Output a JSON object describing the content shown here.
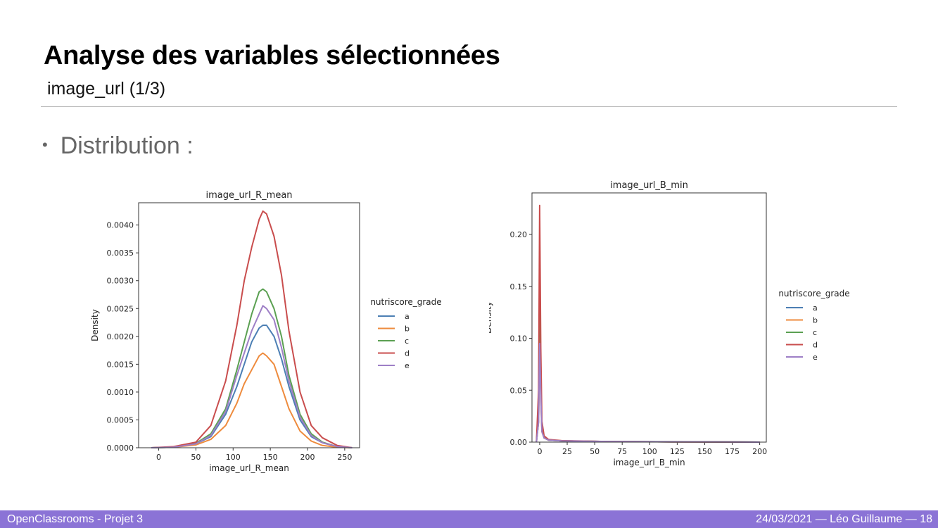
{
  "slide": {
    "title": "Analyse des variables sélectionnées",
    "subtitle": "image_url (1/3)",
    "bullet": "Distribution :"
  },
  "footer": {
    "left": "OpenClassrooms - Projet 3",
    "right": "24/03/2021 — Léo Guillaume — 18"
  },
  "chart_data": [
    {
      "type": "line",
      "title": "image_url_R_mean",
      "xlabel": "image_url_R_mean",
      "ylabel": "Density",
      "xlim": [
        -27,
        270
      ],
      "ylim": [
        0,
        0.0044
      ],
      "xticks": [
        0,
        50,
        100,
        150,
        200,
        250
      ],
      "yticks": [
        0.0,
        0.0005,
        0.001,
        0.0015,
        0.002,
        0.0025,
        0.003,
        0.0035,
        0.004
      ],
      "ytick_labels": [
        "0.0000",
        "0.0005",
        "0.0010",
        "0.0015",
        "0.0020",
        "0.0025",
        "0.0030",
        "0.0035",
        "0.0040"
      ],
      "xtick_labels": [
        "0",
        "50",
        "100",
        "150",
        "200",
        "250"
      ],
      "legend": {
        "title": "nutriscore_grade",
        "placement": "outside-right"
      },
      "series": [
        {
          "name": "a",
          "color": "#4c7fb4",
          "x": [
            -10,
            20,
            50,
            70,
            90,
            105,
            115,
            125,
            135,
            140,
            145,
            155,
            165,
            175,
            190,
            205,
            220,
            240,
            260
          ],
          "y": [
            0,
            1e-05,
            7e-05,
            0.0002,
            0.0006,
            0.0011,
            0.0015,
            0.0019,
            0.00215,
            0.0022,
            0.0022,
            0.002,
            0.0016,
            0.0011,
            0.0005,
            0.0002,
            9e-05,
            2e-05,
            0
          ]
        },
        {
          "name": "b",
          "color": "#ee8b3d",
          "x": [
            -10,
            20,
            50,
            70,
            90,
            105,
            115,
            125,
            135,
            140,
            145,
            155,
            165,
            175,
            190,
            205,
            220,
            240,
            260
          ],
          "y": [
            0,
            1e-05,
            5e-05,
            0.00015,
            0.0004,
            0.0008,
            0.00115,
            0.0014,
            0.00165,
            0.0017,
            0.00165,
            0.0015,
            0.0011,
            0.0007,
            0.0003,
            0.00012,
            4e-05,
            1e-05,
            0
          ]
        },
        {
          "name": "c",
          "color": "#5ba052",
          "x": [
            -10,
            20,
            50,
            70,
            90,
            105,
            115,
            125,
            135,
            140,
            145,
            155,
            165,
            175,
            190,
            205,
            220,
            240,
            260
          ],
          "y": [
            0,
            1e-05,
            8e-05,
            0.00025,
            0.0007,
            0.0014,
            0.0019,
            0.0024,
            0.0028,
            0.00285,
            0.0028,
            0.0025,
            0.002,
            0.0013,
            0.0006,
            0.00025,
            0.0001,
            2e-05,
            0
          ]
        },
        {
          "name": "d",
          "color": "#c94d4d",
          "x": [
            -10,
            20,
            50,
            70,
            90,
            105,
            115,
            125,
            135,
            140,
            145,
            155,
            165,
            175,
            190,
            205,
            220,
            240,
            260
          ],
          "y": [
            0,
            2e-05,
            0.0001,
            0.0004,
            0.0012,
            0.0022,
            0.003,
            0.0036,
            0.0041,
            0.00425,
            0.0042,
            0.0038,
            0.0031,
            0.0021,
            0.001,
            0.0004,
            0.00018,
            4e-05,
            0
          ]
        },
        {
          "name": "e",
          "color": "#9e7fc6",
          "x": [
            -10,
            20,
            50,
            70,
            90,
            105,
            115,
            125,
            135,
            140,
            145,
            155,
            165,
            175,
            190,
            205,
            220,
            240,
            260
          ],
          "y": [
            0,
            1e-05,
            7e-05,
            0.00022,
            0.00065,
            0.0013,
            0.0017,
            0.0021,
            0.0024,
            0.00255,
            0.0025,
            0.0023,
            0.0018,
            0.0012,
            0.00055,
            0.00022,
            9e-05,
            2e-05,
            0
          ]
        }
      ]
    },
    {
      "type": "line",
      "title": "image_url_B_min",
      "xlabel": "image_url_B_min",
      "ylabel": "Density",
      "xlim": [
        -7,
        206
      ],
      "ylim": [
        0,
        0.24
      ],
      "xticks": [
        0,
        25,
        50,
        75,
        100,
        125,
        150,
        175,
        200
      ],
      "yticks": [
        0.0,
        0.05,
        0.1,
        0.15,
        0.2
      ],
      "ytick_labels": [
        "0.00",
        "0.05",
        "0.10",
        "0.15",
        "0.20"
      ],
      "xtick_labels": [
        "0",
        "25",
        "50",
        "75",
        "100",
        "125",
        "150",
        "175",
        "200"
      ],
      "legend": {
        "title": "nutriscore_grade",
        "placement": "outside-right"
      },
      "series": [
        {
          "name": "a",
          "color": "#4c7fb4",
          "x": [
            -3,
            -1,
            0,
            1,
            2,
            4,
            8,
            20,
            60,
            120,
            200
          ],
          "y": [
            0,
            0.02,
            0.1,
            0.05,
            0.012,
            0.004,
            0.002,
            0.0012,
            0.0006,
            0.0003,
            0
          ]
        },
        {
          "name": "b",
          "color": "#ee8b3d",
          "x": [
            -3,
            -1,
            0,
            1,
            2,
            4,
            8,
            20,
            60,
            120,
            200
          ],
          "y": [
            0,
            0.02,
            0.09,
            0.045,
            0.01,
            0.004,
            0.002,
            0.0012,
            0.0006,
            0.0003,
            0
          ]
        },
        {
          "name": "c",
          "color": "#5ba052",
          "x": [
            -3,
            -1,
            0,
            1,
            2,
            4,
            8,
            20,
            60,
            120,
            170,
            200
          ],
          "y": [
            0,
            0.03,
            0.135,
            0.06,
            0.014,
            0.005,
            0.002,
            0.0012,
            0.0006,
            0.0004,
            0.0002,
            0
          ]
        },
        {
          "name": "d",
          "color": "#c94d4d",
          "x": [
            -3,
            -1,
            0,
            1,
            2,
            4,
            8,
            20,
            60,
            120,
            200
          ],
          "y": [
            0,
            0.05,
            0.228,
            0.09,
            0.02,
            0.006,
            0.0025,
            0.0014,
            0.0006,
            0.0003,
            0
          ]
        },
        {
          "name": "e",
          "color": "#9e7fc6",
          "x": [
            -3,
            -1,
            0,
            1,
            2,
            4,
            8,
            20,
            60,
            120,
            200
          ],
          "y": [
            0,
            0.02,
            0.095,
            0.045,
            0.01,
            0.004,
            0.002,
            0.0012,
            0.0006,
            0.0003,
            0
          ]
        }
      ]
    }
  ]
}
